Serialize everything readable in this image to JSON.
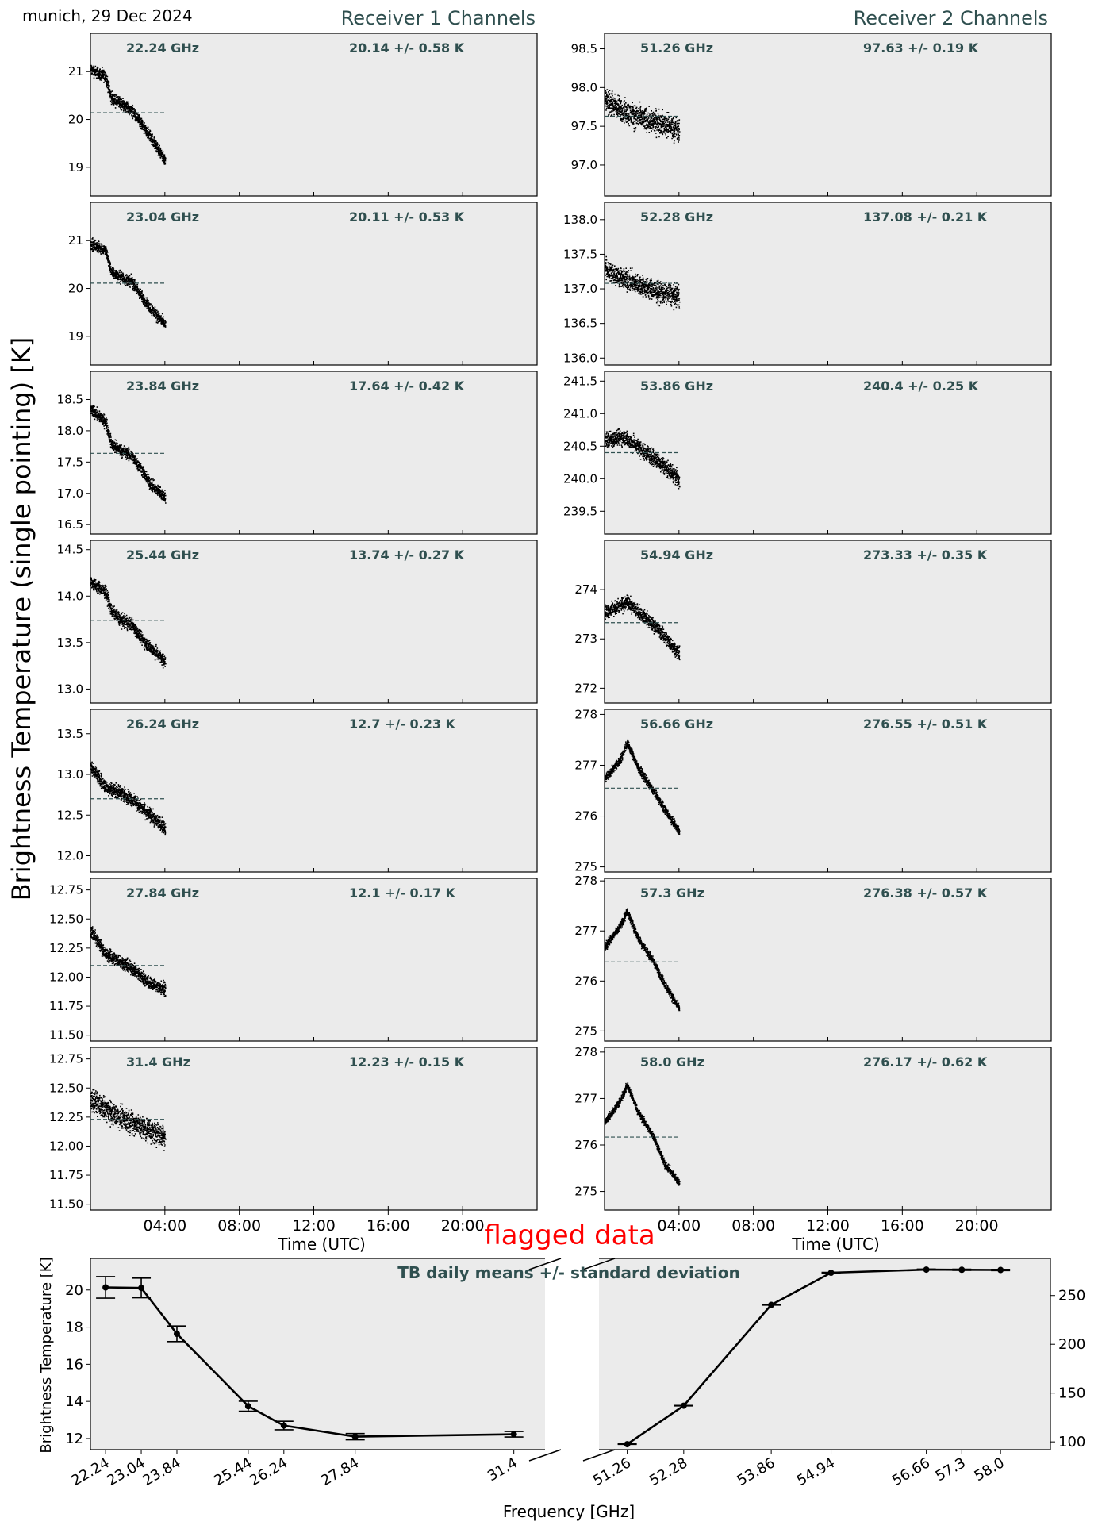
{
  "header": {
    "site_label": "munich, 29 Dec 2024",
    "receiver1_title": "Receiver 1 Channels",
    "receiver2_title": "Receiver 2 Channels",
    "ylabel_main": "Brightness Temperature (single pointing) [K]",
    "flag_label": "flagged data"
  },
  "colors": {
    "panel_bg": "#ebebeb",
    "label_color": "#2f4f4f",
    "flag_color": "#ff0000",
    "data_color": "#000000"
  },
  "chart_data": [
    {
      "type": "scatter",
      "title": "Receiver 1 Channels",
      "xlabel": "Time (UTC)",
      "xticks": [
        "04:00",
        "08:00",
        "12:00",
        "16:00",
        "20:00"
      ],
      "xlim_hours": [
        0,
        24
      ],
      "data_span_hours": [
        0,
        4
      ],
      "panels": [
        {
          "freq_label": "22.24 GHz",
          "stat_label": "20.14 +/- 0.58 K",
          "mean": 20.14,
          "ylim": [
            18.4,
            21.8
          ],
          "yticks": [
            "19",
            "20",
            "21"
          ],
          "trend": [
            [
              0,
              21.05
            ],
            [
              0.8,
              20.9
            ],
            [
              1.1,
              20.45
            ],
            [
              1.6,
              20.35
            ],
            [
              2.2,
              20.2
            ],
            [
              2.7,
              19.9
            ],
            [
              3.2,
              19.65
            ],
            [
              4.0,
              19.15
            ]
          ],
          "spread": 0.18
        },
        {
          "freq_label": "23.04 GHz",
          "stat_label": "20.11 +/- 0.53 K",
          "mean": 20.11,
          "ylim": [
            18.4,
            21.8
          ],
          "yticks": [
            "19",
            "20",
            "21"
          ],
          "trend": [
            [
              0,
              20.95
            ],
            [
              0.8,
              20.8
            ],
            [
              1.1,
              20.35
            ],
            [
              1.6,
              20.25
            ],
            [
              2.2,
              20.15
            ],
            [
              2.7,
              19.85
            ],
            [
              3.2,
              19.6
            ],
            [
              4.0,
              19.25
            ]
          ],
          "spread": 0.17
        },
        {
          "freq_label": "23.84 GHz",
          "stat_label": "17.64 +/- 0.42 K",
          "mean": 17.64,
          "ylim": [
            16.35,
            18.95
          ],
          "yticks": [
            "16.5",
            "17.0",
            "17.5",
            "18.0",
            "18.5"
          ],
          "trend": [
            [
              0,
              18.35
            ],
            [
              0.8,
              18.15
            ],
            [
              1.1,
              17.8
            ],
            [
              1.6,
              17.7
            ],
            [
              2.2,
              17.6
            ],
            [
              2.7,
              17.4
            ],
            [
              3.2,
              17.15
            ],
            [
              4.0,
              16.95
            ]
          ],
          "spread": 0.14
        },
        {
          "freq_label": "25.44 GHz",
          "stat_label": "13.74 +/- 0.27 K",
          "mean": 13.74,
          "ylim": [
            12.85,
            14.6
          ],
          "yticks": [
            "13.0",
            "13.5",
            "14.0",
            "14.5"
          ],
          "trend": [
            [
              0,
              14.15
            ],
            [
              0.8,
              14.05
            ],
            [
              1.1,
              13.85
            ],
            [
              1.6,
              13.75
            ],
            [
              2.2,
              13.7
            ],
            [
              2.7,
              13.55
            ],
            [
              3.2,
              13.45
            ],
            [
              4.0,
              13.3
            ]
          ],
          "spread": 0.1
        },
        {
          "freq_label": "26.24 GHz",
          "stat_label": "12.7 +/- 0.23 K",
          "mean": 12.7,
          "ylim": [
            11.8,
            13.8
          ],
          "yticks": [
            "12.0",
            "12.5",
            "13.0",
            "13.5"
          ],
          "trend": [
            [
              0,
              13.1
            ],
            [
              0.8,
              12.85
            ],
            [
              1.5,
              12.8
            ],
            [
              2.2,
              12.7
            ],
            [
              2.7,
              12.6
            ],
            [
              3.2,
              12.5
            ],
            [
              4.0,
              12.35
            ]
          ],
          "spread": 0.12
        },
        {
          "freq_label": "27.84 GHz",
          "stat_label": "12.1 +/- 0.17 K",
          "mean": 12.1,
          "ylim": [
            11.45,
            12.85
          ],
          "yticks": [
            "11.50",
            "11.75",
            "12.00",
            "12.25",
            "12.50",
            "12.75"
          ],
          "trend": [
            [
              0,
              12.4
            ],
            [
              0.8,
              12.2
            ],
            [
              1.5,
              12.15
            ],
            [
              2.2,
              12.08
            ],
            [
              2.8,
              12.0
            ],
            [
              3.2,
              11.95
            ],
            [
              4.0,
              11.9
            ]
          ],
          "spread": 0.08
        },
        {
          "freq_label": "31.4 GHz",
          "stat_label": "12.23 +/- 0.15 K",
          "mean": 12.23,
          "ylim": [
            11.45,
            12.85
          ],
          "yticks": [
            "11.50",
            "11.75",
            "12.00",
            "12.25",
            "12.50",
            "12.75"
          ],
          "trend": [
            [
              0,
              12.4
            ],
            [
              1.0,
              12.3
            ],
            [
              2.0,
              12.22
            ],
            [
              3.0,
              12.15
            ],
            [
              4.0,
              12.08
            ]
          ],
          "spread": 0.14
        }
      ]
    },
    {
      "type": "scatter",
      "title": "Receiver 2 Channels",
      "xlabel": "Time (UTC)",
      "xticks": [
        "04:00",
        "08:00",
        "12:00",
        "16:00",
        "20:00"
      ],
      "xlim_hours": [
        0,
        24
      ],
      "data_span_hours": [
        0,
        4
      ],
      "panels": [
        {
          "freq_label": "51.26 GHz",
          "stat_label": "97.63 +/- 0.19 K",
          "mean": 97.63,
          "ylim": [
            96.6,
            98.7
          ],
          "yticks": [
            "97.0",
            "97.5",
            "98.0",
            "98.5"
          ],
          "trend": [
            [
              0,
              97.85
            ],
            [
              1.0,
              97.7
            ],
            [
              2.0,
              97.6
            ],
            [
              3.0,
              97.55
            ],
            [
              4.0,
              97.45
            ]
          ],
          "spread": 0.22
        },
        {
          "freq_label": "52.28 GHz",
          "stat_label": "137.08 +/- 0.21 K",
          "mean": 137.08,
          "ylim": [
            135.9,
            138.25
          ],
          "yticks": [
            "136.0",
            "136.5",
            "137.0",
            "137.5",
            "138.0"
          ],
          "trend": [
            [
              0,
              137.3
            ],
            [
              1.0,
              137.15
            ],
            [
              2.0,
              137.05
            ],
            [
              3.0,
              136.95
            ],
            [
              4.0,
              136.9
            ]
          ],
          "spread": 0.22
        },
        {
          "freq_label": "53.86 GHz",
          "stat_label": "240.4 +/- 0.25 K",
          "mean": 240.4,
          "ylim": [
            239.15,
            241.65
          ],
          "yticks": [
            "239.5",
            "240.0",
            "240.5",
            "241.0",
            "241.5"
          ],
          "trend": [
            [
              0,
              240.6
            ],
            [
              1.0,
              240.65
            ],
            [
              2.0,
              240.45
            ],
            [
              3.0,
              240.25
            ],
            [
              4.0,
              240.0
            ]
          ],
          "spread": 0.18
        },
        {
          "freq_label": "54.94 GHz",
          "stat_label": "273.33 +/- 0.35 K",
          "mean": 273.33,
          "ylim": [
            271.7,
            275.0
          ],
          "yticks": [
            "272",
            "273",
            "274"
          ],
          "trend": [
            [
              0,
              273.55
            ],
            [
              1.2,
              273.75
            ],
            [
              2.0,
              273.5
            ],
            [
              3.0,
              273.15
            ],
            [
              4.0,
              272.7
            ]
          ],
          "spread": 0.2
        },
        {
          "freq_label": "56.66 GHz",
          "stat_label": "276.55 +/- 0.51 K",
          "mean": 276.55,
          "ylim": [
            274.9,
            278.1
          ],
          "yticks": [
            "275",
            "276",
            "277",
            "278"
          ],
          "trend": [
            [
              0,
              276.75
            ],
            [
              0.8,
              277.1
            ],
            [
              1.2,
              277.45
            ],
            [
              1.8,
              276.95
            ],
            [
              2.6,
              276.5
            ],
            [
              3.2,
              276.15
            ],
            [
              4.0,
              275.7
            ]
          ],
          "spread": 0.12
        },
        {
          "freq_label": "57.3 GHz",
          "stat_label": "276.38 +/- 0.57 K",
          "mean": 276.38,
          "ylim": [
            274.8,
            278.05
          ],
          "yticks": [
            "275",
            "276",
            "277",
            "278"
          ],
          "trend": [
            [
              0,
              276.7
            ],
            [
              0.8,
              277.1
            ],
            [
              1.2,
              277.4
            ],
            [
              1.8,
              276.85
            ],
            [
              2.6,
              276.4
            ],
            [
              3.2,
              275.95
            ],
            [
              4.0,
              275.45
            ]
          ],
          "spread": 0.12
        },
        {
          "freq_label": "58.0 GHz",
          "stat_label": "276.17 +/- 0.62 K",
          "mean": 276.17,
          "ylim": [
            274.6,
            278.1
          ],
          "yticks": [
            "275",
            "276",
            "277",
            "278"
          ],
          "trend": [
            [
              0,
              276.5
            ],
            [
              0.8,
              276.95
            ],
            [
              1.2,
              277.3
            ],
            [
              1.8,
              276.7
            ],
            [
              2.6,
              276.2
            ],
            [
              3.2,
              275.6
            ],
            [
              4.0,
              275.2
            ]
          ],
          "spread": 0.12
        }
      ]
    },
    {
      "type": "line",
      "title": "TB daily means +/- standard deviation",
      "xlabel": "Frequency [GHz]",
      "ylabel": "Brightness Temperature [K]",
      "left_axis": {
        "ylim": [
          11.4,
          21.7
        ],
        "yticks": [
          12,
          14,
          16,
          18,
          20
        ],
        "x_ghz": [
          22.24,
          23.04,
          23.84,
          25.44,
          26.24,
          27.84,
          31.4
        ],
        "x_labels": [
          "22.24",
          "23.04",
          "23.84",
          "25.44",
          "26.24",
          "27.84",
          "31.4"
        ],
        "means": [
          20.14,
          20.11,
          17.64,
          13.74,
          12.7,
          12.1,
          12.23
        ],
        "stds": [
          0.58,
          0.53,
          0.42,
          0.27,
          0.23,
          0.17,
          0.15
        ]
      },
      "right_axis": {
        "ylim": [
          92,
          288
        ],
        "yticks": [
          100,
          150,
          200,
          250
        ],
        "x_ghz": [
          51.26,
          52.28,
          53.86,
          54.94,
          56.66,
          57.3,
          58.0
        ],
        "x_labels": [
          "51.26",
          "52.28",
          "53.86",
          "54.94",
          "56.66",
          "57.3",
          "58.0"
        ],
        "means": [
          97.63,
          137.08,
          240.4,
          273.33,
          276.55,
          276.38,
          276.17
        ],
        "stds": [
          0.19,
          0.21,
          0.25,
          0.35,
          0.51,
          0.57,
          0.62
        ]
      }
    }
  ]
}
